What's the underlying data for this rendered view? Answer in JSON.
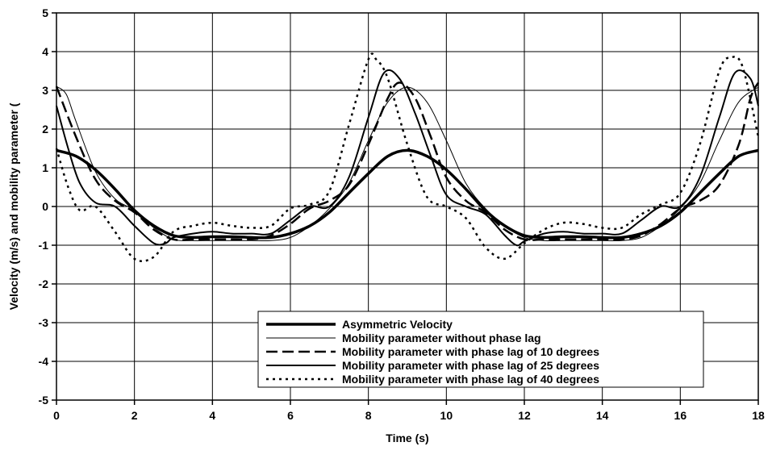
{
  "chart_data": {
    "type": "line",
    "title": "",
    "xlabel": "Time (s)",
    "ylabel": "Velocity (m/s) and mobility parameter (",
    "xlim": [
      0,
      18
    ],
    "ylim": [
      -5,
      5
    ],
    "xticks": [
      0,
      2,
      4,
      6,
      8,
      10,
      12,
      14,
      16,
      18
    ],
    "yticks": [
      -5,
      -4,
      -3,
      -2,
      -1,
      0,
      1,
      2,
      3,
      4,
      5
    ],
    "grid": true,
    "legend_position": "bottom-right",
    "series": [
      {
        "name": "Asymmetric Velocity",
        "style": "thick-solid",
        "x": [
          0,
          0.5,
          1,
          1.5,
          2,
          2.5,
          3,
          3.5,
          4,
          4.5,
          5,
          5.5,
          6,
          6.5,
          7,
          7.5,
          8,
          8.5,
          9,
          9.5,
          10,
          10.5,
          11,
          11.5,
          12,
          12.5,
          13,
          13.5,
          14,
          14.5,
          15,
          15.5,
          16,
          16.5,
          17,
          17.5,
          18
        ],
        "y": [
          1.45,
          1.3,
          0.95,
          0.45,
          -0.1,
          -0.5,
          -0.75,
          -0.8,
          -0.78,
          -0.78,
          -0.8,
          -0.8,
          -0.7,
          -0.5,
          -0.15,
          0.35,
          0.85,
          1.3,
          1.45,
          1.3,
          0.95,
          0.45,
          -0.1,
          -0.5,
          -0.75,
          -0.8,
          -0.78,
          -0.78,
          -0.8,
          -0.8,
          -0.7,
          -0.5,
          -0.15,
          0.35,
          0.85,
          1.3,
          1.45
        ]
      },
      {
        "name": "Mobility parameter without phase lag",
        "style": "thin-solid",
        "x": [
          0,
          0.25,
          0.5,
          1,
          1.5,
          2,
          2.5,
          3,
          3.5,
          4,
          4.5,
          5,
          5.5,
          6,
          6.5,
          7,
          7.5,
          8,
          8.5,
          9,
          9.5,
          10,
          10.5,
          11,
          11.5,
          12,
          12.5,
          13,
          13.5,
          14,
          14.5,
          15,
          15.5,
          16,
          16.5,
          17,
          17.5,
          18
        ],
        "y": [
          3.1,
          2.9,
          2.2,
          0.9,
          0.2,
          -0.1,
          -0.55,
          -0.85,
          -0.88,
          -0.88,
          -0.88,
          -0.88,
          -0.88,
          -0.8,
          -0.5,
          -0.05,
          0.6,
          1.7,
          2.7,
          3.08,
          2.7,
          1.7,
          0.6,
          -0.05,
          -0.5,
          -0.8,
          -0.88,
          -0.88,
          -0.88,
          -0.88,
          -0.88,
          -0.8,
          -0.5,
          -0.05,
          0.6,
          1.7,
          2.7,
          3.08
        ]
      },
      {
        "name": "Mobility parameter with phase lag of 10 degrees",
        "style": "dashed",
        "x": [
          0,
          0.5,
          1,
          1.5,
          2,
          2.5,
          3,
          3.5,
          4,
          4.5,
          5,
          5.5,
          6,
          6.5,
          7,
          7.5,
          8,
          8.5,
          8.8,
          9.2,
          9.6,
          10,
          10.5,
          11,
          11.5,
          12,
          12.5,
          13,
          13.5,
          14,
          14.5,
          15,
          15.5,
          16,
          16.5,
          17,
          17.5,
          17.8,
          18
        ],
        "y": [
          3.1,
          1.8,
          0.7,
          0.15,
          -0.15,
          -0.6,
          -0.85,
          -0.85,
          -0.85,
          -0.85,
          -0.85,
          -0.75,
          -0.45,
          -0.05,
          0.15,
          0.55,
          1.6,
          2.8,
          3.2,
          2.8,
          1.8,
          0.75,
          0.15,
          -0.15,
          -0.6,
          -0.85,
          -0.85,
          -0.85,
          -0.85,
          -0.85,
          -0.85,
          -0.75,
          -0.45,
          -0.05,
          0.15,
          0.55,
          1.6,
          2.8,
          3.2
        ]
      },
      {
        "name": "Mobility parameter with phase lag of 25 degrees",
        "style": "medium-solid",
        "x": [
          0,
          0.3,
          0.6,
          1,
          1.5,
          2,
          2.5,
          2.8,
          3,
          3.5,
          4,
          4.5,
          5,
          5.5,
          6,
          6.5,
          7,
          7.5,
          8,
          8.4,
          8.8,
          9.2,
          9.6,
          10,
          10.5,
          11,
          11.5,
          11.8,
          12,
          12.5,
          13,
          13.5,
          14,
          14.5,
          15,
          15.5,
          16,
          16.5,
          17,
          17.4,
          17.8,
          18
        ],
        "y": [
          2.6,
          1.5,
          0.6,
          0.1,
          0.0,
          -0.5,
          -0.95,
          -0.95,
          -0.8,
          -0.7,
          -0.65,
          -0.7,
          -0.7,
          -0.7,
          -0.35,
          -0.0,
          0.0,
          0.75,
          2.3,
          3.45,
          3.3,
          2.4,
          1.3,
          0.3,
          0.0,
          -0.2,
          -0.75,
          -1.0,
          -0.9,
          -0.7,
          -0.65,
          -0.7,
          -0.7,
          -0.7,
          -0.35,
          0.0,
          0.0,
          0.75,
          2.3,
          3.45,
          3.3,
          2.6
        ]
      },
      {
        "name": "Mobility parameter with phase lag of 40 degrees",
        "style": "dotted",
        "x": [
          0,
          0.3,
          0.6,
          1,
          1.5,
          2,
          2.5,
          3,
          3.5,
          4,
          4.5,
          5,
          5.5,
          6,
          6.5,
          7,
          7.5,
          8,
          8.2,
          8.5,
          9,
          9.5,
          10,
          10.5,
          11,
          11.5,
          12,
          12.5,
          13,
          13.5,
          14,
          14.5,
          15,
          15.5,
          16,
          16.5,
          17,
          17.3,
          17.6,
          18
        ],
        "y": [
          1.5,
          0.5,
          -0.1,
          0.0,
          -0.65,
          -1.35,
          -1.3,
          -0.65,
          -0.5,
          -0.42,
          -0.5,
          -0.55,
          -0.5,
          -0.05,
          0.05,
          0.4,
          2.1,
          3.8,
          3.8,
          3.3,
          1.6,
          0.25,
          0.0,
          -0.3,
          -1.05,
          -1.35,
          -0.95,
          -0.6,
          -0.42,
          -0.45,
          -0.55,
          -0.55,
          -0.2,
          0.05,
          0.35,
          1.6,
          3.5,
          3.85,
          3.6,
          1.8
        ]
      }
    ]
  }
}
